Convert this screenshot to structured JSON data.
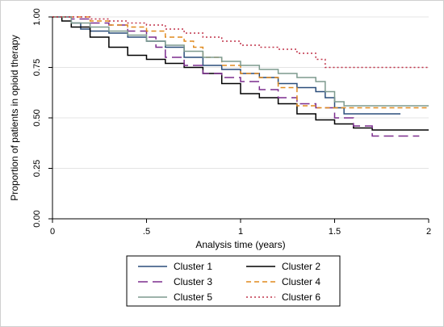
{
  "chart_data": {
    "type": "line",
    "title": "",
    "xlabel": "Analysis time (years)",
    "ylabel": "Proportion of patients in opioid therapy",
    "xlim": [
      0,
      2
    ],
    "ylim": [
      0,
      1
    ],
    "x_ticks": [
      0,
      0.5,
      1,
      1.5,
      2
    ],
    "x_tick_labels": [
      "0",
      ".5",
      "1",
      "1.5",
      "2"
    ],
    "y_ticks": [
      0,
      0.25,
      0.5,
      0.75,
      1
    ],
    "y_tick_labels": [
      "0.00",
      "0.25",
      "0.50",
      "0.75",
      "1.00"
    ],
    "grid": "horizontal",
    "legend": "bottom",
    "series": [
      {
        "name": "Cluster 1",
        "color": "#2a4d7a",
        "dash": "solid",
        "points": [
          [
            0,
            1
          ],
          [
            0.1,
            0.97
          ],
          [
            0.15,
            0.94
          ],
          [
            0.2,
            0.93
          ],
          [
            0.3,
            0.92
          ],
          [
            0.4,
            0.9
          ],
          [
            0.5,
            0.88
          ],
          [
            0.6,
            0.85
          ],
          [
            0.7,
            0.8
          ],
          [
            0.8,
            0.76
          ],
          [
            0.9,
            0.74
          ],
          [
            1.0,
            0.72
          ],
          [
            1.1,
            0.7
          ],
          [
            1.2,
            0.67
          ],
          [
            1.3,
            0.65
          ],
          [
            1.4,
            0.63
          ],
          [
            1.45,
            0.6
          ],
          [
            1.5,
            0.55
          ],
          [
            1.55,
            0.52
          ],
          [
            1.6,
            0.52
          ],
          [
            1.7,
            0.52
          ],
          [
            1.85,
            0.52
          ]
        ]
      },
      {
        "name": "Cluster 2",
        "color": "#000000",
        "dash": "solid",
        "points": [
          [
            0,
            1
          ],
          [
            0.05,
            0.98
          ],
          [
            0.1,
            0.95
          ],
          [
            0.2,
            0.9
          ],
          [
            0.3,
            0.85
          ],
          [
            0.4,
            0.81
          ],
          [
            0.5,
            0.79
          ],
          [
            0.6,
            0.77
          ],
          [
            0.7,
            0.75
          ],
          [
            0.8,
            0.72
          ],
          [
            0.9,
            0.67
          ],
          [
            1.0,
            0.62
          ],
          [
            1.1,
            0.6
          ],
          [
            1.2,
            0.57
          ],
          [
            1.3,
            0.52
          ],
          [
            1.4,
            0.49
          ],
          [
            1.5,
            0.47
          ],
          [
            1.6,
            0.45
          ],
          [
            1.7,
            0.44
          ],
          [
            2.0,
            0.44
          ]
        ]
      },
      {
        "name": "Cluster 3",
        "color": "#7b2d8e",
        "dash": "dash",
        "points": [
          [
            0,
            1
          ],
          [
            0.1,
            0.99
          ],
          [
            0.2,
            0.97
          ],
          [
            0.3,
            0.96
          ],
          [
            0.4,
            0.93
          ],
          [
            0.5,
            0.9
          ],
          [
            0.55,
            0.85
          ],
          [
            0.6,
            0.8
          ],
          [
            0.7,
            0.76
          ],
          [
            0.8,
            0.72
          ],
          [
            0.9,
            0.7
          ],
          [
            1.0,
            0.68
          ],
          [
            1.1,
            0.64
          ],
          [
            1.2,
            0.6
          ],
          [
            1.3,
            0.57
          ],
          [
            1.4,
            0.55
          ],
          [
            1.5,
            0.5
          ],
          [
            1.6,
            0.46
          ],
          [
            1.7,
            0.41
          ],
          [
            1.95,
            0.41
          ]
        ]
      },
      {
        "name": "Cluster 4",
        "color": "#e08a1e",
        "dash": "dash-short",
        "points": [
          [
            0,
            1
          ],
          [
            0.2,
            0.98
          ],
          [
            0.3,
            0.96
          ],
          [
            0.4,
            0.95
          ],
          [
            0.5,
            0.93
          ],
          [
            0.6,
            0.9
          ],
          [
            0.7,
            0.88
          ],
          [
            0.75,
            0.85
          ],
          [
            0.8,
            0.8
          ],
          [
            0.9,
            0.76
          ],
          [
            1.0,
            0.72
          ],
          [
            1.1,
            0.7
          ],
          [
            1.2,
            0.65
          ],
          [
            1.3,
            0.56
          ],
          [
            1.4,
            0.55
          ],
          [
            1.5,
            0.55
          ],
          [
            1.6,
            0.55
          ],
          [
            2.0,
            0.55
          ]
        ]
      },
      {
        "name": "Cluster 5",
        "color": "#7d9a8e",
        "dash": "solid",
        "points": [
          [
            0,
            1
          ],
          [
            0.1,
            0.97
          ],
          [
            0.2,
            0.95
          ],
          [
            0.3,
            0.93
          ],
          [
            0.4,
            0.91
          ],
          [
            0.5,
            0.88
          ],
          [
            0.6,
            0.86
          ],
          [
            0.7,
            0.83
          ],
          [
            0.8,
            0.8
          ],
          [
            0.9,
            0.78
          ],
          [
            1.0,
            0.76
          ],
          [
            1.1,
            0.74
          ],
          [
            1.2,
            0.72
          ],
          [
            1.3,
            0.7
          ],
          [
            1.4,
            0.68
          ],
          [
            1.45,
            0.63
          ],
          [
            1.5,
            0.58
          ],
          [
            1.55,
            0.56
          ],
          [
            2.0,
            0.56
          ]
        ]
      },
      {
        "name": "Cluster 6",
        "color": "#c0344a",
        "dash": "dot",
        "points": [
          [
            0,
            1
          ],
          [
            0.2,
            0.99
          ],
          [
            0.3,
            0.98
          ],
          [
            0.4,
            0.97
          ],
          [
            0.5,
            0.96
          ],
          [
            0.6,
            0.94
          ],
          [
            0.7,
            0.92
          ],
          [
            0.8,
            0.9
          ],
          [
            0.9,
            0.88
          ],
          [
            1.0,
            0.86
          ],
          [
            1.1,
            0.85
          ],
          [
            1.2,
            0.84
          ],
          [
            1.3,
            0.82
          ],
          [
            1.4,
            0.79
          ],
          [
            1.45,
            0.75
          ],
          [
            1.5,
            0.75
          ],
          [
            2.0,
            0.75
          ]
        ]
      }
    ]
  }
}
